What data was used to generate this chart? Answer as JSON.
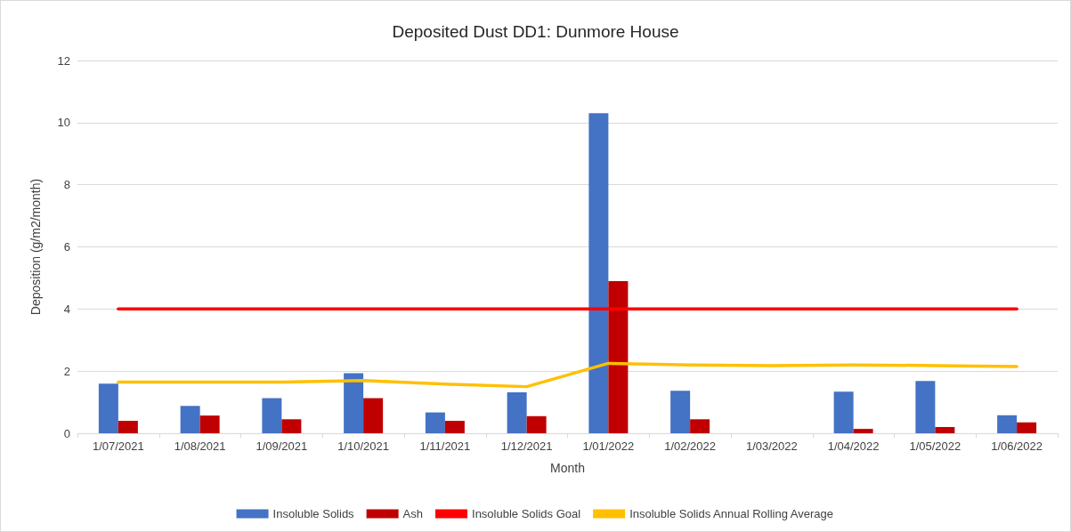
{
  "chart_data": {
    "type": "bar",
    "title": "Deposited Dust DD1: Dunmore House",
    "xlabel": "Month",
    "ylabel": "Deposition (g/m2/month)",
    "categories": [
      "1/07/2021",
      "1/08/2021",
      "1/09/2021",
      "1/10/2021",
      "1/11/2021",
      "1/12/2021",
      "1/01/2022",
      "1/02/2022",
      "1/03/2022",
      "1/04/2022",
      "1/05/2022",
      "1/06/2022"
    ],
    "series": [
      {
        "name": "Insoluble Solids",
        "color": "#4472c4",
        "values": [
          1.6,
          0.88,
          1.13,
          1.93,
          0.67,
          1.32,
          10.3,
          1.37,
          null,
          1.34,
          1.68,
          0.58
        ]
      },
      {
        "name": "Ash",
        "color": "#c00000",
        "values": [
          0.4,
          0.57,
          0.45,
          1.13,
          0.4,
          0.55,
          4.9,
          0.45,
          null,
          0.14,
          0.2,
          0.35
        ]
      },
      {
        "name": "Insoluble Solids Goal",
        "type": "line",
        "color": "#ff0000",
        "values": [
          4,
          4,
          4,
          4,
          4,
          4,
          4,
          4,
          4,
          4,
          4,
          4
        ]
      },
      {
        "name": "Insoluble Solids Annual Rolling Average",
        "type": "line",
        "color": "#ffc000",
        "values": [
          1.65,
          1.65,
          1.65,
          1.7,
          1.58,
          1.5,
          2.25,
          2.2,
          2.18,
          2.2,
          2.18,
          2.15
        ]
      }
    ],
    "ylim": [
      0,
      12
    ],
    "yticks": [
      0,
      2,
      4,
      6,
      8,
      10,
      12
    ],
    "grid": "y",
    "legend": "bottom",
    "marker": "none",
    "line_style": "solid"
  }
}
